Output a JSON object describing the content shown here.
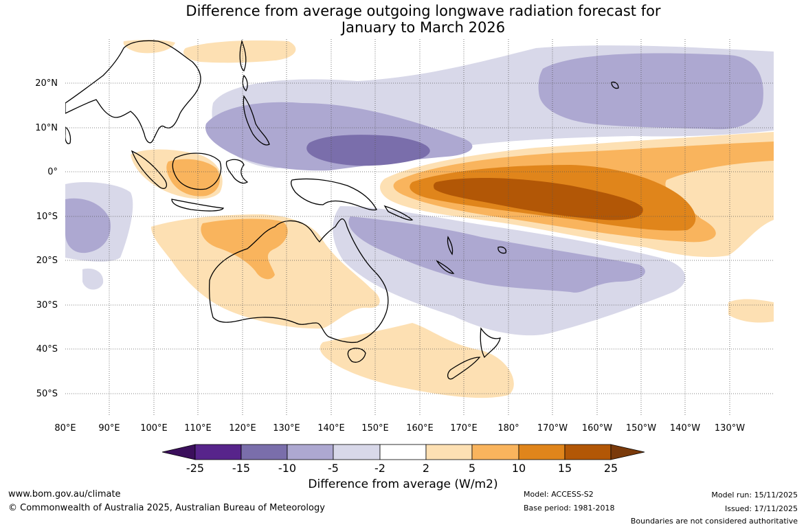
{
  "title": {
    "line1": "Difference from average outgoing longwave radiation forecast for",
    "line2": "January to March 2026"
  },
  "map": {
    "lat_labels": [
      "20°N",
      "10°N",
      "0°",
      "10°S",
      "20°S",
      "30°S",
      "40°S",
      "50°S"
    ],
    "lon_labels": [
      "80°E",
      "90°E",
      "100°E",
      "110°E",
      "120°E",
      "130°E",
      "140°E",
      "150°E",
      "160°E",
      "170°E",
      "180°",
      "170°W",
      "160°W",
      "150°W",
      "140°W",
      "130°W"
    ],
    "extent": {
      "lon_min": 80,
      "lon_max": 240,
      "lat_min": -55,
      "lat_max": 30
    }
  },
  "colorbar": {
    "ticks": [
      "-25",
      "-15",
      "-10",
      "-5",
      "-2",
      "2",
      "5",
      "10",
      "15",
      "25"
    ],
    "colors": [
      "#3b0f5c",
      "#57248b",
      "#7a6eab",
      "#ada8d1",
      "#d8d8e9",
      "#ffffff",
      "#fde0b3",
      "#f9b45d",
      "#e0851b",
      "#b25706",
      "#7a3a0b"
    ],
    "title": "Difference from average (W/m2)"
  },
  "footer": {
    "website": "www.bom.gov.au/climate",
    "copyright": "© Commonwealth of Australia 2025, Australian Bureau of Meteorology",
    "model": "Model: ACCESS-S2",
    "base_period": "Base period: 1981-2018",
    "model_run": "Model run: 15/11/2025",
    "issued": "Issued: 17/11/2025",
    "disclaimer": "Boundaries are not considered authoritative"
  }
}
